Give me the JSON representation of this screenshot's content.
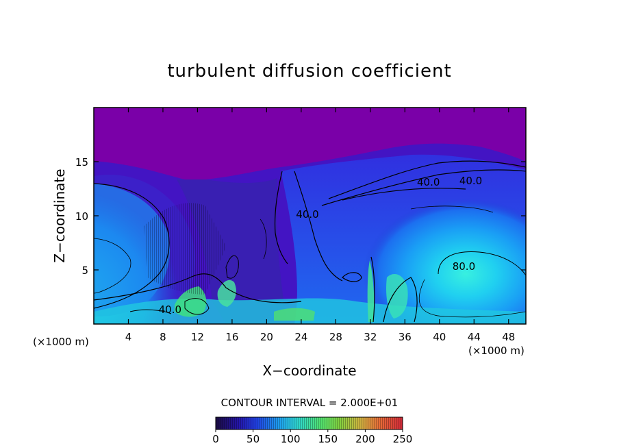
{
  "chart_data": {
    "type": "heatmap",
    "title": "turbulent diffusion coefficient",
    "xlabel": "X−coordinate",
    "ylabel": "Z−coordinate",
    "x_unit_left": "(×1000 m)",
    "x_unit_right": "(×1000 m)",
    "x_ticks": [
      4,
      8,
      12,
      16,
      20,
      24,
      28,
      32,
      36,
      40,
      44,
      48
    ],
    "y_ticks": [
      5,
      10,
      15
    ],
    "xlim": [
      0,
      50
    ],
    "ylim": [
      0,
      20
    ],
    "contour_interval_text": "CONTOUR INTERVAL = 2.000E+01",
    "contour_labels": [
      {
        "text": "40.0",
        "x": 37.4,
        "y": 12.8
      },
      {
        "text": "40.0",
        "x": 42.3,
        "y": 12.9
      },
      {
        "text": "40.0",
        "x": 23.4,
        "y": 9.8
      },
      {
        "text": "80.0",
        "x": 41.5,
        "y": 5.0
      },
      {
        "text": "40.0",
        "x": 7.5,
        "y": 1.0
      }
    ],
    "colorbar": {
      "min": 0,
      "max": 250,
      "ticks": [
        0,
        50,
        100,
        150,
        200,
        250
      ],
      "colors": [
        "#20104a",
        "#2a1bc0",
        "#1f50e8",
        "#19a8f0",
        "#40e0a0",
        "#60d050",
        "#d8d040",
        "#f06030",
        "#d02030"
      ]
    },
    "colors": {
      "background": "#7a00a8",
      "low": "#2a1bc0",
      "mid": "#1f7ff0",
      "high": "#30e0d0",
      "contour": "#000000"
    }
  }
}
